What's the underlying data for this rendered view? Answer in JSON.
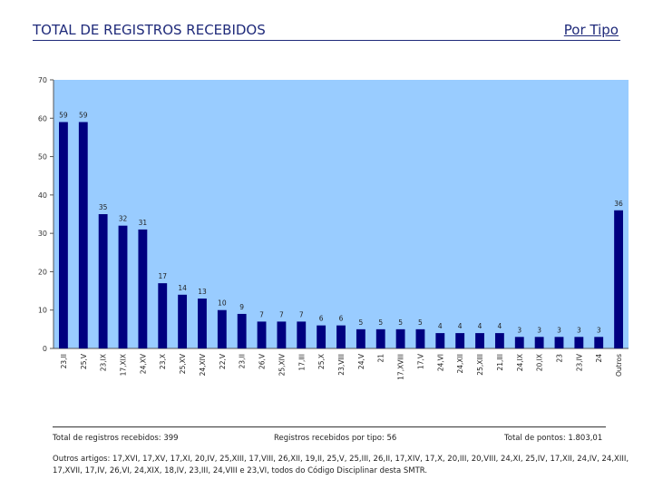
{
  "header": {
    "title": "TOTAL DE REGISTROS RECEBIDOS",
    "type_label": "Por Tipo"
  },
  "chart_data": {
    "type": "bar",
    "categories": [
      "23,II",
      "25,V",
      "23,IX",
      "17,XIX",
      "24,XV",
      "23,X",
      "25,XV",
      "24,XIV",
      "22,V",
      "23,II",
      "26,V",
      "25,XIV",
      "17,III",
      "25,X",
      "23,VIII",
      "24,V",
      "21",
      "17,XVIII",
      "17,V",
      "24,VI",
      "24,XII",
      "25,XIII",
      "21,III",
      "24,IX",
      "20,IX",
      "23",
      "23,IV",
      "24",
      "Outros"
    ],
    "values": [
      59,
      59,
      35,
      32,
      31,
      17,
      14,
      13,
      10,
      9,
      7,
      7,
      7,
      6,
      6,
      5,
      5,
      5,
      5,
      4,
      4,
      4,
      4,
      3,
      3,
      3,
      3,
      3,
      36
    ],
    "ylim": [
      0,
      70
    ],
    "yticks": [
      0,
      10,
      20,
      30,
      40,
      50,
      60,
      70
    ],
    "bar_color": "#000080",
    "plot_background": "#99ccff",
    "grid": false,
    "legend": "none"
  },
  "footer": {
    "total_label": "Total de registros recebidos: 399",
    "by_type_label": "Registros recebidos por tipo: 56",
    "points_label": "Total de pontos: 1.803,01",
    "others_text": "Outros artigos: 17,XVI, 17,XV, 17,XI, 20,IV, 25,XIII, 17,VIII, 26,XII, 19,II, 25,V, 25,III, 26,II, 17,XIV, 17,X, 20,III, 20,VIII, 24,XI, 25,IV, 17,XII, 24,IV, 24,XIII, 17,XVII, 17,IV, 26,VI, 24,XIX, 18,IV, 23,III, 24,VIII e 23,VI, todos do Código Disciplinar desta SMTR."
  }
}
